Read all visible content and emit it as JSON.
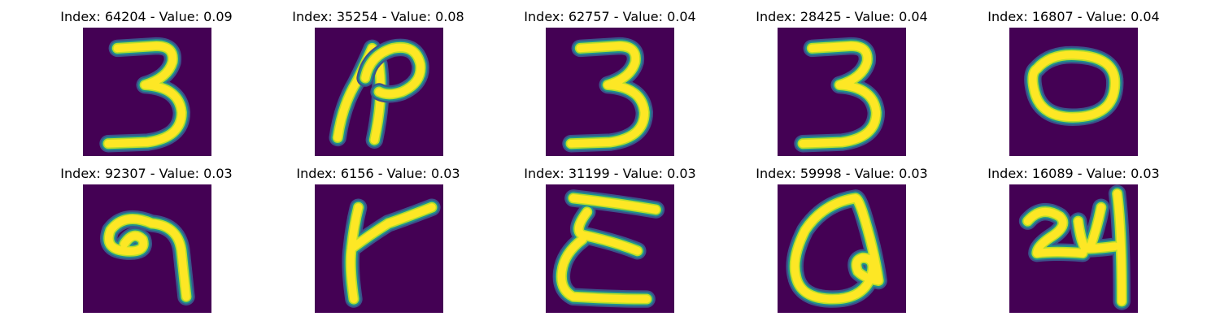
{
  "figure": {
    "background": "#440154",
    "stroke_colors": {
      "core": "#fde725",
      "mid": "#b5de2b",
      "edge": "#21918c",
      "outer": "#3b528b"
    },
    "panels": [
      {
        "title": "Index: 64204 - Value: 0.09",
        "glyph": "3"
      },
      {
        "title": "Index: 35254 - Value: 0.08",
        "glyph": "curl"
      },
      {
        "title": "Index: 62757 - Value: 0.04",
        "glyph": "3"
      },
      {
        "title": "Index: 28425 - Value: 0.04",
        "glyph": "3"
      },
      {
        "title": "Index: 16807 - Value: 0.04",
        "glyph": "0"
      },
      {
        "title": "Index: 92307 - Value: 0.03",
        "glyph": "9"
      },
      {
        "title": "Index: 6156 - Value: 0.03",
        "glyph": "y"
      },
      {
        "title": "Index: 31199 - Value: 0.03",
        "glyph": "E"
      },
      {
        "title": "Index: 59998 - Value: 0.03",
        "glyph": "loop"
      },
      {
        "title": "Index: 16089 - Value: 0.03",
        "glyph": "24"
      }
    ]
  }
}
